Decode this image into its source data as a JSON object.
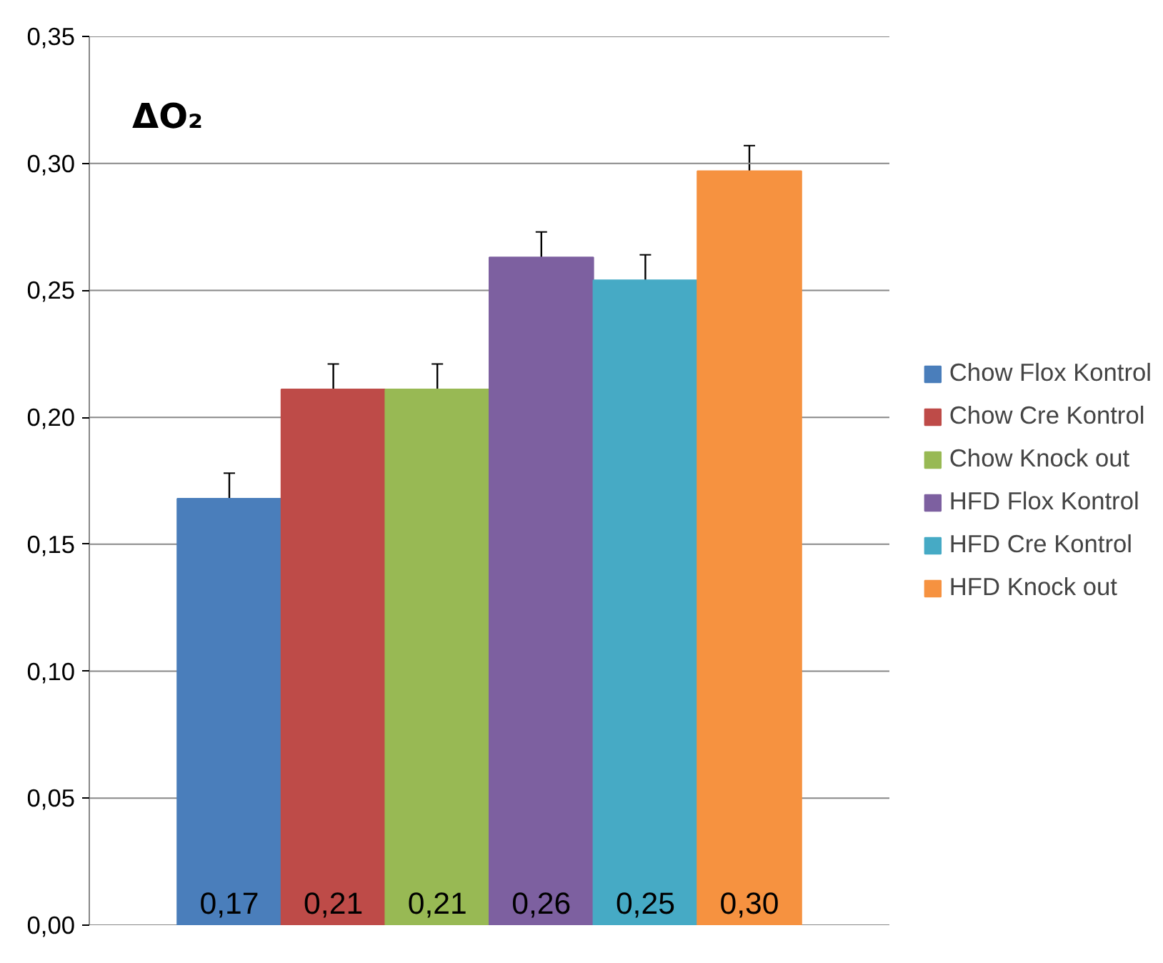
{
  "chart_data": {
    "type": "bar",
    "title": "ΔO₂",
    "categories": [
      null
    ],
    "series": [
      {
        "name": "Chow Flox Kontrol",
        "color": "#4a7ebb",
        "values": [
          0.168
        ],
        "errors": [
          0.01
        ],
        "value_labels": [
          "0,17"
        ]
      },
      {
        "name": "Chow Cre Kontrol",
        "color": "#be4b48",
        "values": [
          0.211
        ],
        "errors": [
          0.01
        ],
        "value_labels": [
          "0,21"
        ]
      },
      {
        "name": "Chow Knock out",
        "color": "#98b954",
        "values": [
          0.211
        ],
        "errors": [
          0.01
        ],
        "value_labels": [
          "0,21"
        ]
      },
      {
        "name": "HFD Flox Kontrol",
        "color": "#7d60a0",
        "values": [
          0.263
        ],
        "errors": [
          0.01
        ],
        "value_labels": [
          "0,26"
        ]
      },
      {
        "name": "HFD Cre Kontrol",
        "color": "#46aac5",
        "values": [
          0.254
        ],
        "errors": [
          0.01
        ],
        "value_labels": [
          "0,25"
        ]
      },
      {
        "name": "HFD Knock out",
        "color": "#f69240",
        "values": [
          0.297
        ],
        "errors": [
          0.01
        ],
        "value_labels": [
          "0,30"
        ]
      }
    ],
    "ylim": [
      0,
      0.35
    ],
    "yticks": [
      {
        "value": 0,
        "label": "0,00"
      },
      {
        "value": 0.05,
        "label": "0,05"
      },
      {
        "value": 0.1,
        "label": "0,10"
      },
      {
        "value": 0.15,
        "label": "0,15"
      },
      {
        "value": 0.2,
        "label": "0,20"
      },
      {
        "value": 0.25,
        "label": "0,25"
      },
      {
        "value": 0.3,
        "label": "0,30"
      },
      {
        "value": 0.35,
        "label": "0,35"
      }
    ],
    "grid": "y",
    "legend": "right"
  }
}
